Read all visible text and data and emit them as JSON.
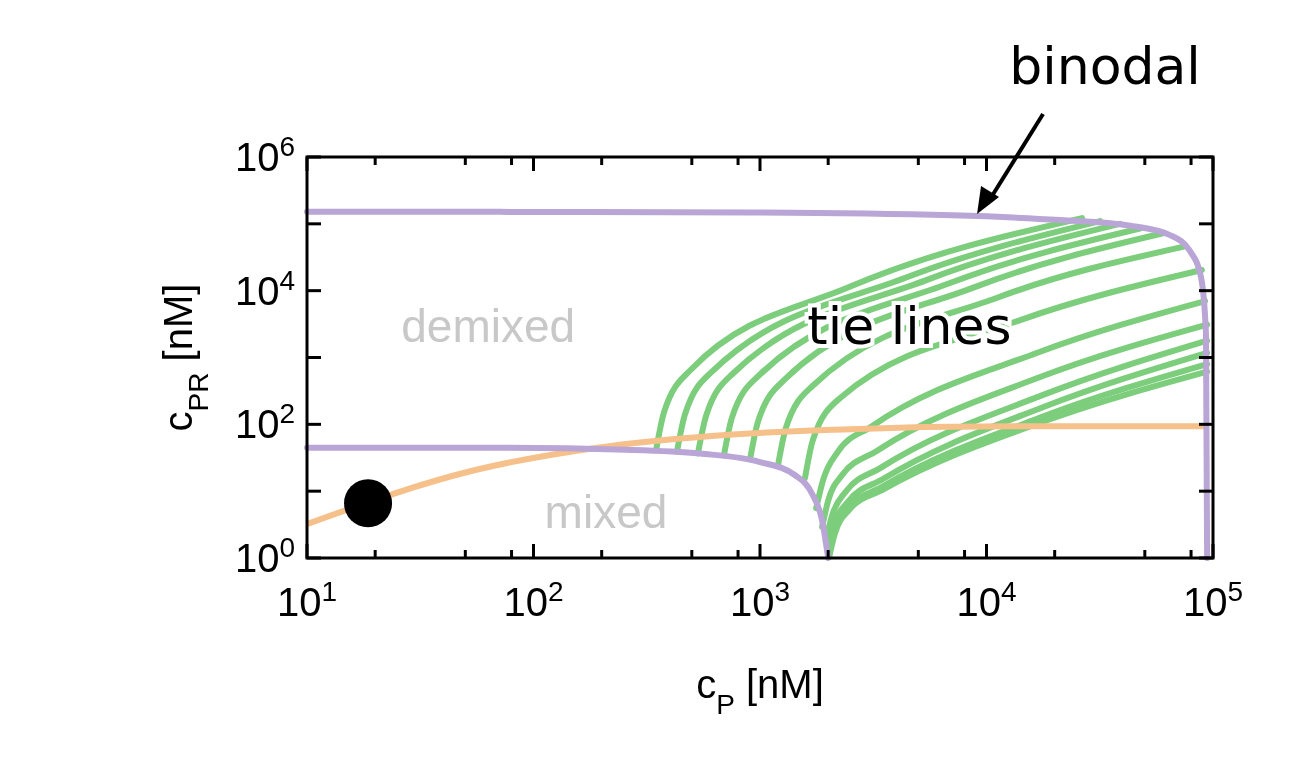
{
  "chart_data": {
    "type": "line",
    "xlabel": "c$_{P}$ [nM]",
    "ylabel": "c$_{PR}$ [nM]",
    "log": "xy",
    "xlim": [
      10,
      100000
    ],
    "ylim": [
      1,
      1000000
    ],
    "xticks": [
      {
        "value": 10,
        "label": "10$^{1}$"
      },
      {
        "value": 20,
        "label": null
      },
      {
        "value": 50,
        "label": null
      },
      {
        "value": 80,
        "label": null
      },
      {
        "value": 100,
        "label": "10$^{2}$"
      },
      {
        "value": 200,
        "label": null
      },
      {
        "value": 500,
        "label": null
      },
      {
        "value": 800,
        "label": null
      },
      {
        "value": 1000,
        "label": "10$^{3}$"
      },
      {
        "value": 2000,
        "label": null
      },
      {
        "value": 5000,
        "label": null
      },
      {
        "value": 8000,
        "label": null
      },
      {
        "value": 10000,
        "label": "10$^{4}$"
      },
      {
        "value": 20000,
        "label": null
      },
      {
        "value": 50000,
        "label": null
      },
      {
        "value": 80000,
        "label": null
      },
      {
        "value": 100000,
        "label": "10$^{5}$"
      }
    ],
    "yticks": [
      {
        "value": 1,
        "label": "10$^{0}$"
      },
      {
        "value": 10,
        "label": null
      },
      {
        "value": 100,
        "label": "10$^{2}$"
      },
      {
        "value": 1000,
        "label": null
      },
      {
        "value": 10000,
        "label": "10$^{4}$"
      },
      {
        "value": 100000,
        "label": null
      },
      {
        "value": 1000000,
        "label": "10$^{6}$"
      }
    ],
    "series": [
      {
        "color": "#7ccd7c",
        "x": [
          348,
          377,
          495,
          2490,
          26400
        ],
        "values": [
          41.7,
          152,
          656,
          11400,
          122000
        ]
      },
      {
        "type": "line",
        "color": "#7ccd7c",
        "x": [
          430,
          467,
          614,
          4420,
          31700
        ],
        "values": [
          39,
          143,
          615,
          15700,
          110000
        ]
      },
      {
        "type": "line",
        "color": "#7ccd7c",
        "x": [
          532,
          578,
          760,
          5460,
          38800
        ],
        "values": [
          36.6,
          134,
          576,
          14500,
          100000
        ]
      },
      {
        "type": "line",
        "color": "#7ccd7c",
        "x": [
          693,
          752,
          990,
          6900,
          47600
        ],
        "values": [
          34.3,
          126,
          540,
          13000,
          85100
        ]
      },
      {
        "type": "line",
        "color": "#7ccd7c",
        "x": [
          904,
          980,
          1290,
          8810,
          60100
        ],
        "values": [
          30.1,
          110,
          474,
          11200,
          72300
        ]
      },
      {
        "type": "line",
        "color": "#7ccd7c",
        "x": [
          1200,
          1300,
          1710,
          11300,
          75200
        ],
        "values": [
          24,
          87.8,
          378,
          7970,
          45900
        ]
      },
      {
        "type": "line",
        "color": "#7ccd7c",
        "x": [
          1580,
          1710,
          2260,
          14200,
          89300
        ],
        "values": [
          15.7,
          57.6,
          248,
          3660,
          20400
        ]
      },
      {
        "type": "line",
        "color": "#7ccd7c",
        "x": [
          1770,
          1900,
          2210,
          3120,
          16900,
          92300
        ],
        "values": [
          5.58,
          14.8,
          39.1,
          93.7,
          1190,
          7000
        ]
      },
      {
        "type": "line",
        "color": "#7ccd7c",
        "x": [
          1880,
          2000,
          2300,
          3290,
          17600,
          94200
        ],
        "values": [
          2.92,
          7.23,
          17.3,
          40.4,
          523,
          3110
        ]
      },
      {
        "type": "line",
        "color": "#7ccd7c",
        "x": [
          1950,
          2080,
          2400,
          3420,
          17900,
          94200
        ],
        "values": [
          1.79,
          4.3,
          10,
          22.5,
          278,
          1790
        ]
      },
      {
        "type": "line",
        "color": "#7ccd7c",
        "x": [
          2000,
          2120,
          2450,
          3490,
          18100,
          94200
        ],
        "values": [
          1.3,
          3.01,
          7,
          15.2,
          185,
          1175
        ]
      },
      {
        "type": "line",
        "color": "#7ccd7c",
        "x": [
          2000,
          2120,
          2450,
          3490,
          18100,
          94200
        ],
        "values": [
          1.1,
          2.48,
          5.58,
          11.8,
          134,
          797
        ]
      },
      {
        "type": "line",
        "color": "#7ccd7c",
        "x": [
          2020,
          2140,
          2470,
          3520,
          18100,
          94200
        ],
        "values": [
          1.03,
          2.32,
          5.23,
          10.7,
          112,
          615
        ]
      },
      {
        "color": "#f5c08a",
        "x": [
          10.2,
          18.6,
          56,
          191,
          631,
          2140,
          12900,
          91200
        ],
        "values": [
          3.3,
          null,
          20.9,
          44.7,
          67.6,
          83.2,
          93.3,
          93.3
        ]
      },
      {
        "type": "line",
        "color": "#b9a5d6",
        "x": [
          10,
          71,
          904,
          7050,
          21100,
          43000,
          64600,
          79200,
          88600,
          93100,
          94200
        ],
        "values": [
          151000,
          151000,
          148000,
          134000,
          114000,
          93800,
          67800,
          39000,
          15700,
          2250,
          1
        ]
      },
      {
        "type": "line",
        "color": "#b9a5d6",
        "x": [
          10,
          71,
          256,
          543,
          1000,
          1430,
          1700,
          1880,
          2000
        ],
        "values": [
          44.5,
          44.5,
          41.7,
          36.6,
          27.3,
          17.3,
          9.08,
          3.66,
          1
        ]
      },
      {
        "type": "scatter",
        "marker": "circle",
        "color": "#000000",
        "x": [
          18.6
        ],
        "values": [
          6.6
        ]
      }
    ],
    "annotations": [
      "demixed",
      "mixed",
      "tie lines",
      {
        "text": "binodal",
        "x": 8900,
        "y": 140000
      }
    ]
  }
}
